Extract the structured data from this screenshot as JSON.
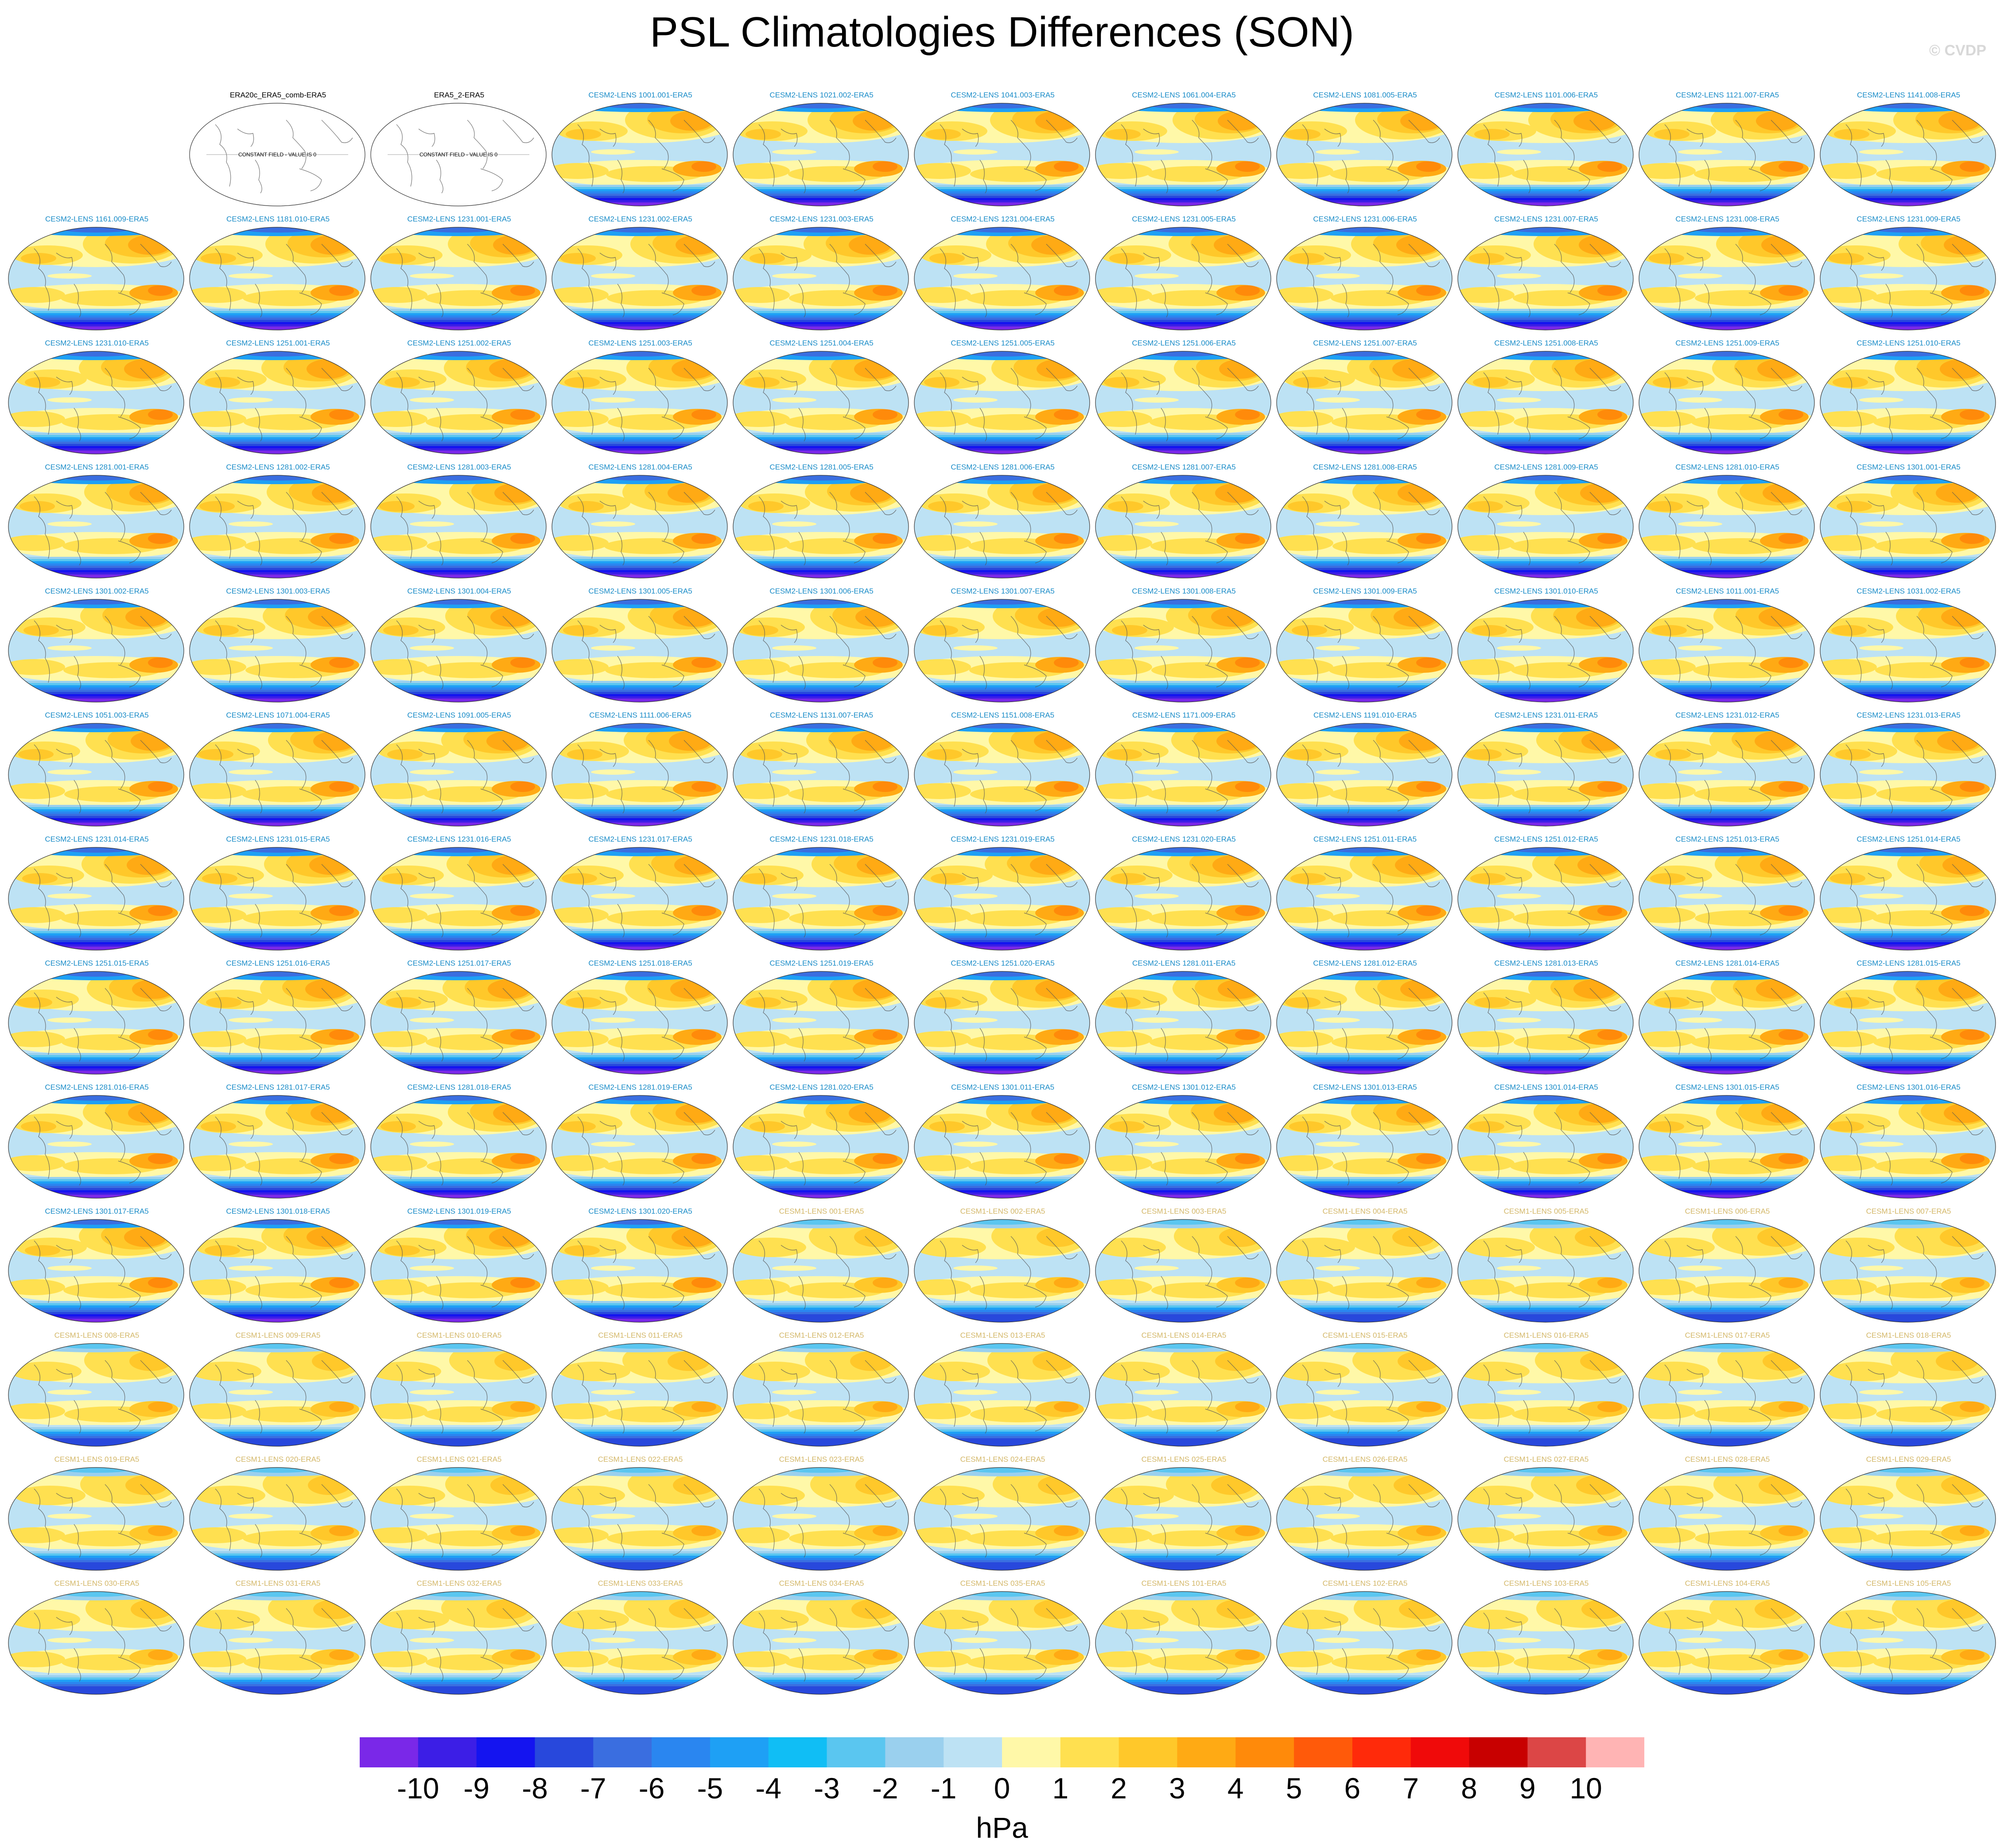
{
  "title": "PSL Climatologies Differences (SON)",
  "credit": "© CVDP",
  "panels": [
    {
      "label": "ERA20c_ERA5_comb-ERA5",
      "group": "obs",
      "note": "CONSTANT FIELD - VALUE IS 0"
    },
    {
      "label": "ERA5_2-ERA5",
      "group": "obs",
      "note": "CONSTANT FIELD - VALUE IS 0"
    },
    {
      "label": "CESM2-LENS 1001.001-ERA5",
      "group": "cesm2"
    },
    {
      "label": "CESM2-LENS 1021.002-ERA5",
      "group": "cesm2"
    },
    {
      "label": "CESM2-LENS 1041.003-ERA5",
      "group": "cesm2"
    },
    {
      "label": "CESM2-LENS 1061.004-ERA5",
      "group": "cesm2"
    },
    {
      "label": "CESM2-LENS 1081.005-ERA5",
      "group": "cesm2"
    },
    {
      "label": "CESM2-LENS 1101.006-ERA5",
      "group": "cesm2"
    },
    {
      "label": "CESM2-LENS 1121.007-ERA5",
      "group": "cesm2"
    },
    {
      "label": "CESM2-LENS 1141.008-ERA5",
      "group": "cesm2"
    },
    {
      "label": "CESM2-LENS 1161.009-ERA5",
      "group": "cesm2"
    },
    {
      "label": "CESM2-LENS 1181.010-ERA5",
      "group": "cesm2"
    },
    {
      "label": "CESM2-LENS 1231.001-ERA5",
      "group": "cesm2"
    },
    {
      "label": "CESM2-LENS 1231.002-ERA5",
      "group": "cesm2"
    },
    {
      "label": "CESM2-LENS 1231.003-ERA5",
      "group": "cesm2"
    },
    {
      "label": "CESM2-LENS 1231.004-ERA5",
      "group": "cesm2"
    },
    {
      "label": "CESM2-LENS 1231.005-ERA5",
      "group": "cesm2"
    },
    {
      "label": "CESM2-LENS 1231.006-ERA5",
      "group": "cesm2"
    },
    {
      "label": "CESM2-LENS 1231.007-ERA5",
      "group": "cesm2"
    },
    {
      "label": "CESM2-LENS 1231.008-ERA5",
      "group": "cesm2"
    },
    {
      "label": "CESM2-LENS 1231.009-ERA5",
      "group": "cesm2"
    },
    {
      "label": "CESM2-LENS 1231.010-ERA5",
      "group": "cesm2"
    },
    {
      "label": "CESM2-LENS 1251.001-ERA5",
      "group": "cesm2"
    },
    {
      "label": "CESM2-LENS 1251.002-ERA5",
      "group": "cesm2"
    },
    {
      "label": "CESM2-LENS 1251.003-ERA5",
      "group": "cesm2"
    },
    {
      "label": "CESM2-LENS 1251.004-ERA5",
      "group": "cesm2"
    },
    {
      "label": "CESM2-LENS 1251.005-ERA5",
      "group": "cesm2"
    },
    {
      "label": "CESM2-LENS 1251.006-ERA5",
      "group": "cesm2"
    },
    {
      "label": "CESM2-LENS 1251.007-ERA5",
      "group": "cesm2"
    },
    {
      "label": "CESM2-LENS 1251.008-ERA5",
      "group": "cesm2"
    },
    {
      "label": "CESM2-LENS 1251.009-ERA5",
      "group": "cesm2"
    },
    {
      "label": "CESM2-LENS 1251.010-ERA5",
      "group": "cesm2"
    },
    {
      "label": "CESM2-LENS 1281.001-ERA5",
      "group": "cesm2"
    },
    {
      "label": "CESM2-LENS 1281.002-ERA5",
      "group": "cesm2"
    },
    {
      "label": "CESM2-LENS 1281.003-ERA5",
      "group": "cesm2"
    },
    {
      "label": "CESM2-LENS 1281.004-ERA5",
      "group": "cesm2"
    },
    {
      "label": "CESM2-LENS 1281.005-ERA5",
      "group": "cesm2"
    },
    {
      "label": "CESM2-LENS 1281.006-ERA5",
      "group": "cesm2"
    },
    {
      "label": "CESM2-LENS 1281.007-ERA5",
      "group": "cesm2"
    },
    {
      "label": "CESM2-LENS 1281.008-ERA5",
      "group": "cesm2"
    },
    {
      "label": "CESM2-LENS 1281.009-ERA5",
      "group": "cesm2"
    },
    {
      "label": "CESM2-LENS 1281.010-ERA5",
      "group": "cesm2"
    },
    {
      "label": "CESM2-LENS 1301.001-ERA5",
      "group": "cesm2"
    },
    {
      "label": "CESM2-LENS 1301.002-ERA5",
      "group": "cesm2"
    },
    {
      "label": "CESM2-LENS 1301.003-ERA5",
      "group": "cesm2"
    },
    {
      "label": "CESM2-LENS 1301.004-ERA5",
      "group": "cesm2"
    },
    {
      "label": "CESM2-LENS 1301.005-ERA5",
      "group": "cesm2"
    },
    {
      "label": "CESM2-LENS 1301.006-ERA5",
      "group": "cesm2"
    },
    {
      "label": "CESM2-LENS 1301.007-ERA5",
      "group": "cesm2"
    },
    {
      "label": "CESM2-LENS 1301.008-ERA5",
      "group": "cesm2"
    },
    {
      "label": "CESM2-LENS 1301.009-ERA5",
      "group": "cesm2"
    },
    {
      "label": "CESM2-LENS 1301.010-ERA5",
      "group": "cesm2"
    },
    {
      "label": "CESM2-LENS 1011.001-ERA5",
      "group": "cesm2"
    },
    {
      "label": "CESM2-LENS 1031.002-ERA5",
      "group": "cesm2"
    },
    {
      "label": "CESM2-LENS 1051.003-ERA5",
      "group": "cesm2"
    },
    {
      "label": "CESM2-LENS 1071.004-ERA5",
      "group": "cesm2"
    },
    {
      "label": "CESM2-LENS 1091.005-ERA5",
      "group": "cesm2"
    },
    {
      "label": "CESM2-LENS 1111.006-ERA5",
      "group": "cesm2"
    },
    {
      "label": "CESM2-LENS 1131.007-ERA5",
      "group": "cesm2"
    },
    {
      "label": "CESM2-LENS 1151.008-ERA5",
      "group": "cesm2"
    },
    {
      "label": "CESM2-LENS 1171.009-ERA5",
      "group": "cesm2"
    },
    {
      "label": "CESM2-LENS 1191.010-ERA5",
      "group": "cesm2"
    },
    {
      "label": "CESM2-LENS 1231.011-ERA5",
      "group": "cesm2"
    },
    {
      "label": "CESM2-LENS 1231.012-ERA5",
      "group": "cesm2"
    },
    {
      "label": "CESM2-LENS 1231.013-ERA5",
      "group": "cesm2"
    },
    {
      "label": "CESM2-LENS 1231.014-ERA5",
      "group": "cesm2"
    },
    {
      "label": "CESM2-LENS 1231.015-ERA5",
      "group": "cesm2"
    },
    {
      "label": "CESM2-LENS 1231.016-ERA5",
      "group": "cesm2"
    },
    {
      "label": "CESM2-LENS 1231.017-ERA5",
      "group": "cesm2"
    },
    {
      "label": "CESM2-LENS 1231.018-ERA5",
      "group": "cesm2"
    },
    {
      "label": "CESM2-LENS 1231.019-ERA5",
      "group": "cesm2"
    },
    {
      "label": "CESM2-LENS 1231.020-ERA5",
      "group": "cesm2"
    },
    {
      "label": "CESM2-LENS 1251.011-ERA5",
      "group": "cesm2"
    },
    {
      "label": "CESM2-LENS 1251.012-ERA5",
      "group": "cesm2"
    },
    {
      "label": "CESM2-LENS 1251.013-ERA5",
      "group": "cesm2"
    },
    {
      "label": "CESM2-LENS 1251.014-ERA5",
      "group": "cesm2"
    },
    {
      "label": "CESM2-LENS 1251.015-ERA5",
      "group": "cesm2"
    },
    {
      "label": "CESM2-LENS 1251.016-ERA5",
      "group": "cesm2"
    },
    {
      "label": "CESM2-LENS 1251.017-ERA5",
      "group": "cesm2"
    },
    {
      "label": "CESM2-LENS 1251.018-ERA5",
      "group": "cesm2"
    },
    {
      "label": "CESM2-LENS 1251.019-ERA5",
      "group": "cesm2"
    },
    {
      "label": "CESM2-LENS 1251.020-ERA5",
      "group": "cesm2"
    },
    {
      "label": "CESM2-LENS 1281.011-ERA5",
      "group": "cesm2"
    },
    {
      "label": "CESM2-LENS 1281.012-ERA5",
      "group": "cesm2"
    },
    {
      "label": "CESM2-LENS 1281.013-ERA5",
      "group": "cesm2"
    },
    {
      "label": "CESM2-LENS 1281.014-ERA5",
      "group": "cesm2"
    },
    {
      "label": "CESM2-LENS 1281.015-ERA5",
      "group": "cesm2"
    },
    {
      "label": "CESM2-LENS 1281.016-ERA5",
      "group": "cesm2"
    },
    {
      "label": "CESM2-LENS 1281.017-ERA5",
      "group": "cesm2"
    },
    {
      "label": "CESM2-LENS 1281.018-ERA5",
      "group": "cesm2"
    },
    {
      "label": "CESM2-LENS 1281.019-ERA5",
      "group": "cesm2"
    },
    {
      "label": "CESM2-LENS 1281.020-ERA5",
      "group": "cesm2"
    },
    {
      "label": "CESM2-LENS 1301.011-ERA5",
      "group": "cesm2"
    },
    {
      "label": "CESM2-LENS 1301.012-ERA5",
      "group": "cesm2"
    },
    {
      "label": "CESM2-LENS 1301.013-ERA5",
      "group": "cesm2"
    },
    {
      "label": "CESM2-LENS 1301.014-ERA5",
      "group": "cesm2"
    },
    {
      "label": "CESM2-LENS 1301.015-ERA5",
      "group": "cesm2"
    },
    {
      "label": "CESM2-LENS 1301.016-ERA5",
      "group": "cesm2"
    },
    {
      "label": "CESM2-LENS 1301.017-ERA5",
      "group": "cesm2"
    },
    {
      "label": "CESM2-LENS 1301.018-ERA5",
      "group": "cesm2"
    },
    {
      "label": "CESM2-LENS 1301.019-ERA5",
      "group": "cesm2"
    },
    {
      "label": "CESM2-LENS 1301.020-ERA5",
      "group": "cesm2"
    },
    {
      "label": "CESM1-LENS 001-ERA5",
      "group": "cesm1"
    },
    {
      "label": "CESM1-LENS 002-ERA5",
      "group": "cesm1"
    },
    {
      "label": "CESM1-LENS 003-ERA5",
      "group": "cesm1"
    },
    {
      "label": "CESM1-LENS 004-ERA5",
      "group": "cesm1"
    },
    {
      "label": "CESM1-LENS 005-ERA5",
      "group": "cesm1"
    },
    {
      "label": "CESM1-LENS 006-ERA5",
      "group": "cesm1"
    },
    {
      "label": "CESM1-LENS 007-ERA5",
      "group": "cesm1"
    },
    {
      "label": "CESM1-LENS 008-ERA5",
      "group": "cesm1"
    },
    {
      "label": "CESM1-LENS 009-ERA5",
      "group": "cesm1"
    },
    {
      "label": "CESM1-LENS 010-ERA5",
      "group": "cesm1"
    },
    {
      "label": "CESM1-LENS 011-ERA5",
      "group": "cesm1"
    },
    {
      "label": "CESM1-LENS 012-ERA5",
      "group": "cesm1"
    },
    {
      "label": "CESM1-LENS 013-ERA5",
      "group": "cesm1"
    },
    {
      "label": "CESM1-LENS 014-ERA5",
      "group": "cesm1"
    },
    {
      "label": "CESM1-LENS 015-ERA5",
      "group": "cesm1"
    },
    {
      "label": "CESM1-LENS 016-ERA5",
      "group": "cesm1"
    },
    {
      "label": "CESM1-LENS 017-ERA5",
      "group": "cesm1"
    },
    {
      "label": "CESM1-LENS 018-ERA5",
      "group": "cesm1"
    },
    {
      "label": "CESM1-LENS 019-ERA5",
      "group": "cesm1"
    },
    {
      "label": "CESM1-LENS 020-ERA5",
      "group": "cesm1"
    },
    {
      "label": "CESM1-LENS 021-ERA5",
      "group": "cesm1"
    },
    {
      "label": "CESM1-LENS 022-ERA5",
      "group": "cesm1"
    },
    {
      "label": "CESM1-LENS 023-ERA5",
      "group": "cesm1"
    },
    {
      "label": "CESM1-LENS 024-ERA5",
      "group": "cesm1"
    },
    {
      "label": "CESM1-LENS 025-ERA5",
      "group": "cesm1"
    },
    {
      "label": "CESM1-LENS 026-ERA5",
      "group": "cesm1"
    },
    {
      "label": "CESM1-LENS 027-ERA5",
      "group": "cesm1"
    },
    {
      "label": "CESM1-LENS 028-ERA5",
      "group": "cesm1"
    },
    {
      "label": "CESM1-LENS 029-ERA5",
      "group": "cesm1"
    },
    {
      "label": "CESM1-LENS 030-ERA5",
      "group": "cesm1"
    },
    {
      "label": "CESM1-LENS 031-ERA5",
      "group": "cesm1"
    },
    {
      "label": "CESM1-LENS 032-ERA5",
      "group": "cesm1"
    },
    {
      "label": "CESM1-LENS 033-ERA5",
      "group": "cesm1"
    },
    {
      "label": "CESM1-LENS 034-ERA5",
      "group": "cesm1"
    },
    {
      "label": "CESM1-LENS 035-ERA5",
      "group": "cesm1"
    },
    {
      "label": "CESM1-LENS 101-ERA5",
      "group": "cesm1"
    },
    {
      "label": "CESM1-LENS 102-ERA5",
      "group": "cesm1"
    },
    {
      "label": "CESM1-LENS 103-ERA5",
      "group": "cesm1"
    },
    {
      "label": "CESM1-LENS 104-ERA5",
      "group": "cesm1"
    },
    {
      "label": "CESM1-LENS 105-ERA5",
      "group": "cesm1"
    }
  ],
  "group_label_colors": {
    "obs": "#000000",
    "cesm2": "#1a8cc8",
    "cesm1": "#d4b86a"
  },
  "colorbar": {
    "label": "hPa",
    "tick_labels": [
      "-10",
      "-9",
      "-8",
      "-7",
      "-6",
      "-5",
      "-4",
      "-3",
      "-2",
      "-1",
      "0",
      "1",
      "2",
      "3",
      "4",
      "5",
      "6",
      "7",
      "8",
      "9",
      "10"
    ],
    "colors": [
      "#7a28e8",
      "#3c1ee6",
      "#1414f0",
      "#2848dc",
      "#3a6ee0",
      "#2a86f0",
      "#1ea0f5",
      "#10bef5",
      "#5ac6f0",
      "#9ad0ee",
      "#bde2f4",
      "#fff8a8",
      "#ffe050",
      "#ffc82a",
      "#ffaa14",
      "#ff8a0a",
      "#ff5a0a",
      "#ff2a0a",
      "#f00a0a",
      "#c80000",
      "#dc4646",
      "#ffb4b4"
    ]
  }
}
